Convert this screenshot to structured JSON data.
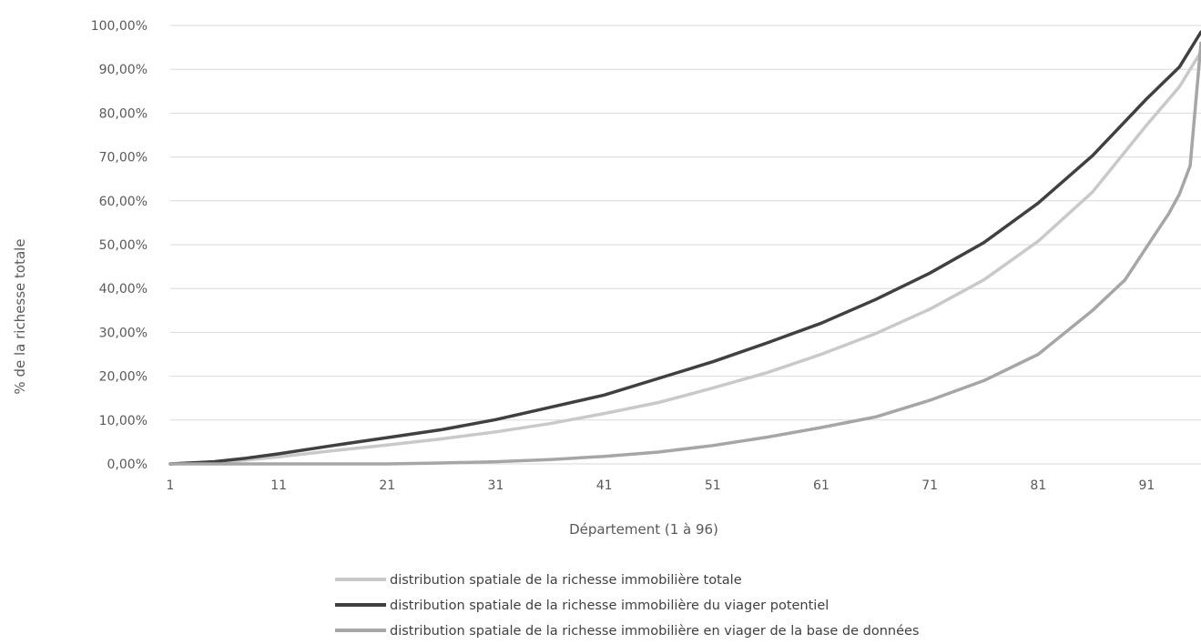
{
  "chart_data": {
    "type": "line",
    "title": "",
    "xlabel": "Département (1 à 96)",
    "ylabel": "% de la richesse totale",
    "x_range": [
      1,
      96
    ],
    "ylim": [
      0,
      100
    ],
    "y_ticks": [
      "0,00%",
      "10,00%",
      "20,00%",
      "30,00%",
      "40,00%",
      "50,00%",
      "60,00%",
      "70,00%",
      "80,00%",
      "90,00%",
      "100,00%"
    ],
    "x_ticks": [
      "1",
      "11",
      "21",
      "31",
      "41",
      "51",
      "61",
      "71",
      "81",
      "91"
    ],
    "grid": true,
    "legend_position": "bottom",
    "series": [
      {
        "name": "distribution spatiale de la richesse immobilière totale",
        "color": "#c9c9c9",
        "points": [
          [
            1,
            0
          ],
          [
            5,
            0.3
          ],
          [
            8,
            0.9
          ],
          [
            11,
            1.6
          ],
          [
            16,
            3
          ],
          [
            21,
            4.3
          ],
          [
            26,
            5.7
          ],
          [
            31,
            7.3
          ],
          [
            36,
            9.2
          ],
          [
            41,
            11.5
          ],
          [
            46,
            14
          ],
          [
            51,
            17.3
          ],
          [
            56,
            20.8
          ],
          [
            61,
            25
          ],
          [
            66,
            29.7
          ],
          [
            71,
            35.3
          ],
          [
            76,
            42
          ],
          [
            81,
            50.8
          ],
          [
            86,
            62
          ],
          [
            91,
            77.3
          ],
          [
            94,
            86
          ],
          [
            96,
            94
          ]
        ]
      },
      {
        "name": "distribution spatiale de la richesse immobilière du viager potentiel",
        "color": "#404040",
        "points": [
          [
            1,
            0
          ],
          [
            5,
            0.5
          ],
          [
            8,
            1.3
          ],
          [
            11,
            2.3
          ],
          [
            16,
            4.2
          ],
          [
            21,
            6
          ],
          [
            26,
            7.8
          ],
          [
            31,
            10.1
          ],
          [
            36,
            12.9
          ],
          [
            41,
            15.7
          ],
          [
            46,
            19.5
          ],
          [
            51,
            23.3
          ],
          [
            56,
            27.6
          ],
          [
            61,
            32.1
          ],
          [
            66,
            37.5
          ],
          [
            71,
            43.5
          ],
          [
            76,
            50.5
          ],
          [
            81,
            59.5
          ],
          [
            86,
            70.3
          ],
          [
            91,
            83.3
          ],
          [
            94,
            90.5
          ],
          [
            96,
            98.5
          ]
        ]
      },
      {
        "name": "distribution spatiale de la richesse immobilière en viager de la base de données",
        "color": "#a6a6a6",
        "points": [
          [
            1,
            0
          ],
          [
            11,
            0
          ],
          [
            21,
            0
          ],
          [
            26,
            0.2
          ],
          [
            31,
            0.5
          ],
          [
            36,
            1
          ],
          [
            41,
            1.7
          ],
          [
            46,
            2.7
          ],
          [
            51,
            4.2
          ],
          [
            56,
            6.1
          ],
          [
            61,
            8.3
          ],
          [
            66,
            10.7
          ],
          [
            71,
            14.5
          ],
          [
            76,
            19
          ],
          [
            81,
            25
          ],
          [
            86,
            35
          ],
          [
            89,
            42
          ],
          [
            91,
            49.5
          ],
          [
            93,
            57
          ],
          [
            94,
            61.5
          ],
          [
            95,
            68
          ],
          [
            96,
            96
          ]
        ]
      }
    ]
  }
}
